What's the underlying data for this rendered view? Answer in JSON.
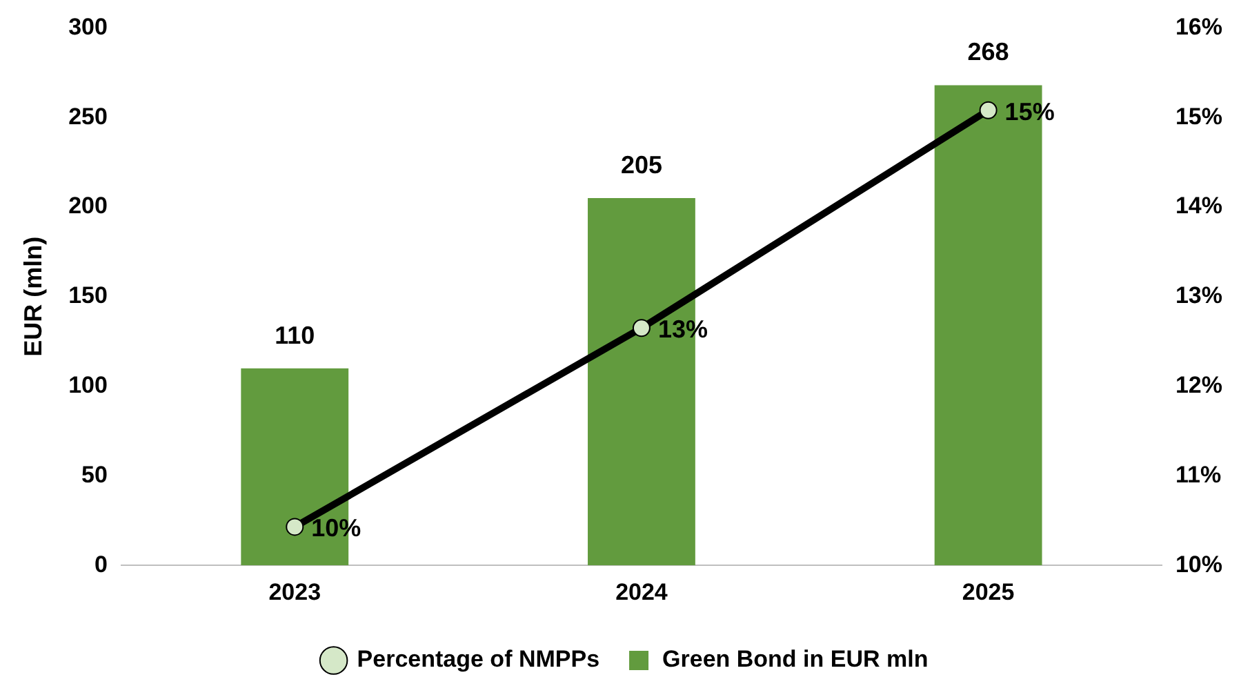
{
  "chart_data": {
    "type": "bar",
    "categories": [
      "2023",
      "2024",
      "2025"
    ],
    "ylabel": "EUR (mln)",
    "ylim": [
      0,
      300
    ],
    "yticks": [
      0,
      50,
      100,
      150,
      200,
      250,
      300
    ],
    "y2lim": [
      10,
      16
    ],
    "y2ticks": [
      {
        "value": 10,
        "label": "10%"
      },
      {
        "value": 11,
        "label": "11%"
      },
      {
        "value": 12,
        "label": "12%"
      },
      {
        "value": 13,
        "label": "13%"
      },
      {
        "value": 14,
        "label": "14%"
      },
      {
        "value": 15,
        "label": "15%"
      },
      {
        "value": 16,
        "label": "16%"
      }
    ],
    "legend": "bottom",
    "grid": false,
    "marker": "circle",
    "series": [
      {
        "name": "Green Bond in EUR mln",
        "color": "#629b3e",
        "values": [
          110,
          205,
          268
        ],
        "value_labels": [
          "110",
          "205",
          "268"
        ]
      },
      {
        "name": "Percentage of NMPPs",
        "type": "line",
        "axis": "y2",
        "color": "#000000",
        "values": [
          10.43,
          12.65,
          15.08
        ],
        "value_labels": [
          "10%",
          "13%",
          "15%"
        ]
      }
    ]
  }
}
